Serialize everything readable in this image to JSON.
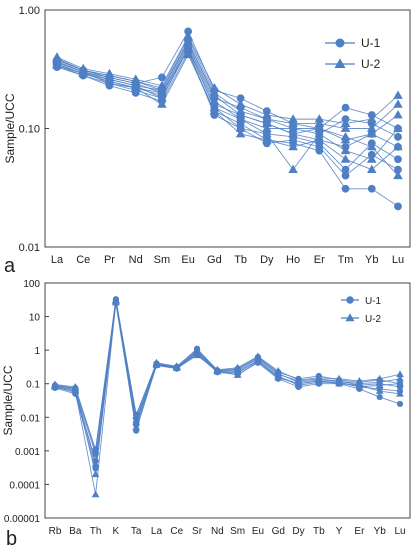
{
  "colors": {
    "series": "#4f7fc4",
    "frame": "#444444"
  },
  "chart_data": [
    {
      "type": "line",
      "panel_label": "a",
      "ylabel": "Sample/UCC",
      "yscale": "log",
      "ylim": [
        0.01,
        1
      ],
      "yticks": [
        "0.01",
        "0.10",
        "1.00"
      ],
      "yticks_values": [
        0.01,
        0.1,
        1
      ],
      "categories": [
        "La",
        "Ce",
        "Pr",
        "Nd",
        "Sm",
        "Eu",
        "Gd",
        "Tb",
        "Dy",
        "Ho",
        "Er",
        "Tm",
        "Yb",
        "Lu"
      ],
      "legend": {
        "position": "top-right",
        "entries": [
          {
            "name": "U-1",
            "marker": "circle"
          },
          {
            "name": "U-2",
            "marker": "triangle"
          }
        ]
      },
      "series": [
        {
          "name": "U-1",
          "marker": "circle",
          "values": [
            0.38,
            0.31,
            0.27,
            0.24,
            0.27,
            0.66,
            0.21,
            0.18,
            0.14,
            0.11,
            0.1,
            0.15,
            0.13,
            0.1
          ]
        },
        {
          "name": "U-1",
          "marker": "circle",
          "values": [
            0.36,
            0.3,
            0.26,
            0.23,
            0.21,
            0.55,
            0.18,
            0.15,
            0.12,
            0.1,
            0.09,
            0.12,
            0.11,
            0.085
          ]
        },
        {
          "name": "U-1",
          "marker": "circle",
          "values": [
            0.35,
            0.29,
            0.25,
            0.22,
            0.19,
            0.5,
            0.16,
            0.13,
            0.11,
            0.09,
            0.08,
            0.07,
            0.09,
            0.07
          ]
        },
        {
          "name": "U-1",
          "marker": "circle",
          "values": [
            0.34,
            0.28,
            0.24,
            0.21,
            0.18,
            0.48,
            0.15,
            0.12,
            0.09,
            0.085,
            0.075,
            0.045,
            0.075,
            0.055
          ]
        },
        {
          "name": "U-1",
          "marker": "circle",
          "values": [
            0.33,
            0.28,
            0.23,
            0.2,
            0.17,
            0.44,
            0.14,
            0.11,
            0.08,
            0.075,
            0.065,
            0.031,
            0.031,
            0.022
          ]
        },
        {
          "name": "U-1",
          "marker": "circle",
          "values": [
            0.36,
            0.3,
            0.24,
            0.22,
            0.2,
            0.46,
            0.13,
            0.1,
            0.075,
            0.08,
            0.07,
            0.04,
            0.06,
            0.045
          ]
        },
        {
          "name": "U-2",
          "marker": "triangle",
          "values": [
            0.4,
            0.32,
            0.29,
            0.26,
            0.23,
            0.6,
            0.22,
            0.16,
            0.13,
            0.12,
            0.12,
            0.11,
            0.12,
            0.19
          ]
        },
        {
          "name": "U-2",
          "marker": "triangle",
          "values": [
            0.38,
            0.31,
            0.28,
            0.25,
            0.22,
            0.58,
            0.2,
            0.14,
            0.12,
            0.11,
            0.11,
            0.1,
            0.1,
            0.16
          ]
        },
        {
          "name": "U-2",
          "marker": "triangle",
          "values": [
            0.37,
            0.3,
            0.27,
            0.24,
            0.2,
            0.52,
            0.17,
            0.12,
            0.1,
            0.1,
            0.1,
            0.08,
            0.09,
            0.13
          ]
        },
        {
          "name": "U-2",
          "marker": "triangle",
          "values": [
            0.35,
            0.29,
            0.26,
            0.23,
            0.18,
            0.47,
            0.15,
            0.1,
            0.09,
            0.045,
            0.09,
            0.065,
            0.055,
            0.1
          ]
        },
        {
          "name": "U-2",
          "marker": "triangle",
          "values": [
            0.34,
            0.29,
            0.25,
            0.22,
            0.16,
            0.42,
            0.14,
            0.09,
            0.08,
            0.07,
            0.08,
            0.055,
            0.045,
            0.07
          ]
        },
        {
          "name": "U-2",
          "marker": "triangle",
          "values": [
            0.39,
            0.31,
            0.28,
            0.25,
            0.21,
            0.54,
            0.19,
            0.13,
            0.11,
            0.09,
            0.1,
            0.085,
            0.07,
            0.04
          ]
        }
      ]
    },
    {
      "type": "line",
      "panel_label": "b",
      "ylabel": "Sample/UCC",
      "yscale": "log",
      "ylim": [
        1e-05,
        100
      ],
      "yticks": [
        "0.00001",
        "0.0001",
        "0.001",
        "0.01",
        "0.1",
        "1",
        "10",
        "100"
      ],
      "yticks_values": [
        1e-05,
        0.0001,
        0.001,
        0.01,
        0.1,
        1,
        10,
        100
      ],
      "categories": [
        "Rb",
        "Ba",
        "Th",
        "K",
        "Ta",
        "La",
        "Ce",
        "Sr",
        "Nd",
        "Sm",
        "Eu",
        "Gd",
        "Dy",
        "Tb",
        "Y",
        "Er",
        "Yb",
        "Lu"
      ],
      "legend": {
        "position": "top-right",
        "entries": [
          {
            "name": "U-1",
            "marker": "circle"
          },
          {
            "name": "U-2",
            "marker": "triangle"
          }
        ]
      },
      "series": [
        {
          "name": "U-1",
          "marker": "circle",
          "values": [
            0.09,
            0.075,
            0.0011,
            33,
            0.012,
            0.4,
            0.32,
            1.1,
            0.25,
            0.28,
            0.62,
            0.22,
            0.14,
            0.17,
            0.13,
            0.11,
            0.13,
            0.1
          ]
        },
        {
          "name": "U-1",
          "marker": "circle",
          "values": [
            0.085,
            0.065,
            0.0008,
            30,
            0.009,
            0.38,
            0.3,
            0.95,
            0.24,
            0.24,
            0.55,
            0.19,
            0.12,
            0.14,
            0.12,
            0.09,
            0.1,
            0.08
          ]
        },
        {
          "name": "U-1",
          "marker": "circle",
          "values": [
            0.08,
            0.055,
            0.0005,
            27,
            0.006,
            0.36,
            0.29,
            0.85,
            0.23,
            0.21,
            0.48,
            0.16,
            0.1,
            0.12,
            0.11,
            0.08,
            0.07,
            0.06
          ]
        },
        {
          "name": "U-1",
          "marker": "circle",
          "values": [
            0.075,
            0.05,
            0.0003,
            25,
            0.004,
            0.35,
            0.28,
            0.75,
            0.22,
            0.19,
            0.42,
            0.14,
            0.08,
            0.1,
            0.1,
            0.07,
            0.04,
            0.025
          ]
        },
        {
          "name": "U-2",
          "marker": "triangle",
          "values": [
            0.095,
            0.08,
            0.001,
            31,
            0.011,
            0.42,
            0.33,
            1.0,
            0.26,
            0.3,
            0.65,
            0.24,
            0.13,
            0.15,
            0.14,
            0.12,
            0.14,
            0.19
          ]
        },
        {
          "name": "U-2",
          "marker": "triangle",
          "values": [
            0.09,
            0.07,
            0.0002,
            29,
            0.008,
            0.39,
            0.31,
            0.9,
            0.25,
            0.26,
            0.58,
            0.2,
            0.11,
            0.13,
            0.12,
            0.1,
            0.11,
            0.14
          ]
        },
        {
          "name": "U-2",
          "marker": "triangle",
          "values": [
            0.08,
            0.06,
            5e-05,
            26,
            0.005,
            0.37,
            0.3,
            0.8,
            0.23,
            0.22,
            0.5,
            0.17,
            0.09,
            0.11,
            0.11,
            0.08,
            0.09,
            0.1
          ]
        },
        {
          "name": "U-2",
          "marker": "triangle",
          "values": [
            0.085,
            0.065,
            0.0004,
            28,
            0.007,
            0.36,
            0.29,
            0.7,
            0.24,
            0.18,
            0.45,
            0.15,
            0.1,
            0.12,
            0.1,
            0.09,
            0.06,
            0.05
          ]
        }
      ]
    }
  ]
}
